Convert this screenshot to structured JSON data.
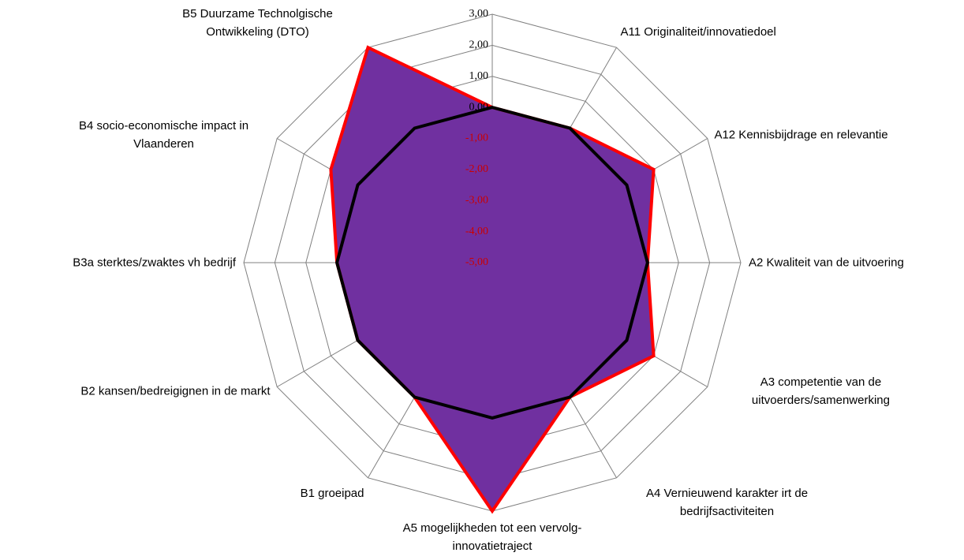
{
  "chart_data": {
    "type": "radar",
    "categories": [
      null,
      "A11 Originaliteit/innovatiedoel",
      "A12 Kennisbijdrage en relevantie",
      "A2 Kwaliteit van de uitvoering",
      "A3 competentie van de uitvoerders/samenwerking",
      "A4 Vernieuwend karakter irt de bedrijfsactiviteiten",
      "A5 mogelijkheden tot een vervolg-innovatietraject",
      "B1 groeipad",
      "B2 kansen/bedreigignen in de markt",
      "B3a sterktes/zwaktes vh bedrijf",
      "B4 socio-economische impact in Vlaanderen",
      "B5 Duurzame Technolgische Ontwikkeling (DTO)"
    ],
    "series": [
      {
        "color": "#ff0000",
        "fill": "#7030a0",
        "values": [
          0,
          0,
          1,
          0,
          1,
          0,
          3,
          0,
          0,
          0,
          1,
          3
        ]
      },
      {
        "color": "#000000",
        "values": [
          0,
          0,
          0,
          0,
          0,
          0,
          0,
          0,
          0,
          0,
          0,
          0
        ]
      }
    ],
    "ylim": [
      -5,
      3
    ],
    "yticks": [
      {
        "value": 3,
        "label": "3,00"
      },
      {
        "value": 2,
        "label": "2,00"
      },
      {
        "value": 1,
        "label": "1,00"
      },
      {
        "value": 0,
        "label": "0,00"
      },
      {
        "value": -1,
        "label": "-1,00"
      },
      {
        "value": -2,
        "label": "-2,00"
      },
      {
        "value": -3,
        "label": "-3,00"
      },
      {
        "value": -4,
        "label": "-4,00"
      },
      {
        "value": -5,
        "label": "-5,00"
      }
    ],
    "tick_label_color": "#000000",
    "negative_tick_label_color": "#cc0000",
    "grid": true
  }
}
